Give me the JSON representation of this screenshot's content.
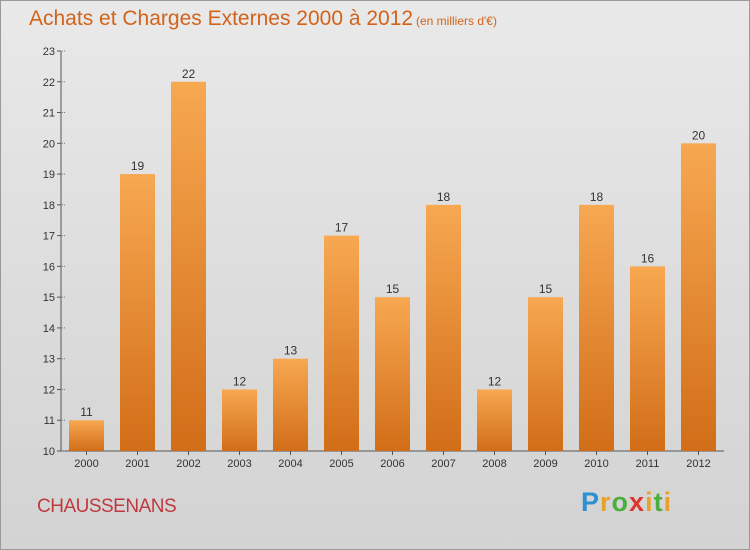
{
  "title": "Achats et Charges Externes 2000 à 2012",
  "subtitle": "(en milliers d'€)",
  "commune": "CHAUSSENANS",
  "logo": {
    "letters": [
      "P",
      "r",
      "o",
      "x",
      "i",
      "t",
      "i"
    ],
    "colors": [
      "#2e8fd4",
      "#e8a22a",
      "#4cae3c",
      "#e0342a",
      "#e8a22a",
      "#4cae3c",
      "#e8a22a"
    ]
  },
  "colors": {
    "bar_top": "#f7a851",
    "bar_bottom": "#d26d18",
    "text_accent": "#d2631a"
  },
  "chart_data": {
    "type": "bar",
    "categories": [
      "2000",
      "2001",
      "2002",
      "2003",
      "2004",
      "2005",
      "2006",
      "2007",
      "2008",
      "2009",
      "2010",
      "2011",
      "2012"
    ],
    "values": [
      11,
      19,
      22,
      12,
      13,
      17,
      15,
      18,
      12,
      15,
      18,
      16,
      20
    ],
    "ylim": [
      10,
      23
    ],
    "yticks": [
      10,
      11,
      12,
      13,
      14,
      15,
      16,
      17,
      18,
      19,
      20,
      21,
      22,
      23
    ],
    "grid": false,
    "legend": "none"
  }
}
